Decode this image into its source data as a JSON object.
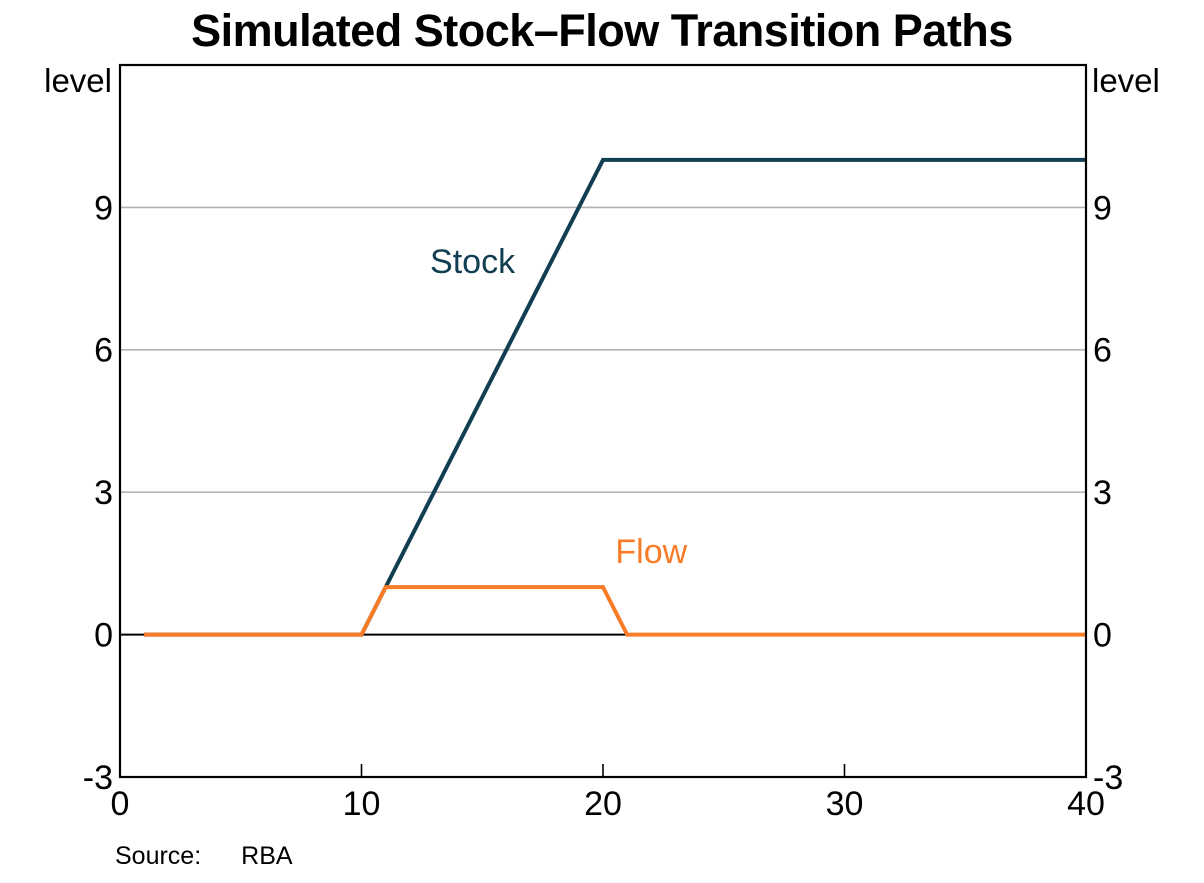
{
  "page": {
    "background": "#ffffff"
  },
  "source": {
    "label": "Source:",
    "value": "RBA"
  },
  "chart_data": {
    "type": "line",
    "title": "Simulated Stock–Flow Transition Paths",
    "axis_label_left": "level",
    "axis_label_right": "level",
    "xlim": [
      0,
      40
    ],
    "ylim": [
      -3,
      12
    ],
    "x_ticks": [
      0,
      10,
      20,
      30,
      40
    ],
    "x_tick_marks": [
      10,
      20,
      30
    ],
    "y_ticks": [
      -3,
      0,
      3,
      6,
      9
    ],
    "gridline_ticks": [
      3,
      6,
      9
    ],
    "zero_line": true,
    "grid_on": true,
    "legend_position": "inline-labels",
    "grid_color": "#b3b3b3",
    "axis_color": "#000000",
    "x": [
      1,
      2,
      3,
      4,
      5,
      6,
      7,
      8,
      9,
      10,
      11,
      12,
      13,
      14,
      15,
      16,
      17,
      18,
      19,
      20,
      21,
      22,
      23,
      24,
      25,
      26,
      27,
      28,
      29,
      30,
      31,
      32,
      33,
      34,
      35,
      36,
      37,
      38,
      39,
      40
    ],
    "series": [
      {
        "name": "Stock",
        "color": "#123E52",
        "label_anchor": {
          "x": 14.6,
          "y": 7.85
        },
        "values": [
          0,
          0,
          0,
          0,
          0,
          0,
          0,
          0,
          0,
          0,
          1,
          2,
          3,
          4,
          5,
          6,
          7,
          8,
          9,
          10,
          10,
          10,
          10,
          10,
          10,
          10,
          10,
          10,
          10,
          10,
          10,
          10,
          10,
          10,
          10,
          10,
          10,
          10,
          10,
          10
        ]
      },
      {
        "name": "Flow",
        "color": "#F87C28",
        "label_anchor": {
          "x": 22.0,
          "y": 1.74
        },
        "values": [
          0,
          0,
          0,
          0,
          0,
          0,
          0,
          0,
          0,
          0,
          1,
          1,
          1,
          1,
          1,
          1,
          1,
          1,
          1,
          1,
          0,
          0,
          0,
          0,
          0,
          0,
          0,
          0,
          0,
          0,
          0,
          0,
          0,
          0,
          0,
          0,
          0,
          0,
          0,
          0
        ]
      }
    ]
  }
}
